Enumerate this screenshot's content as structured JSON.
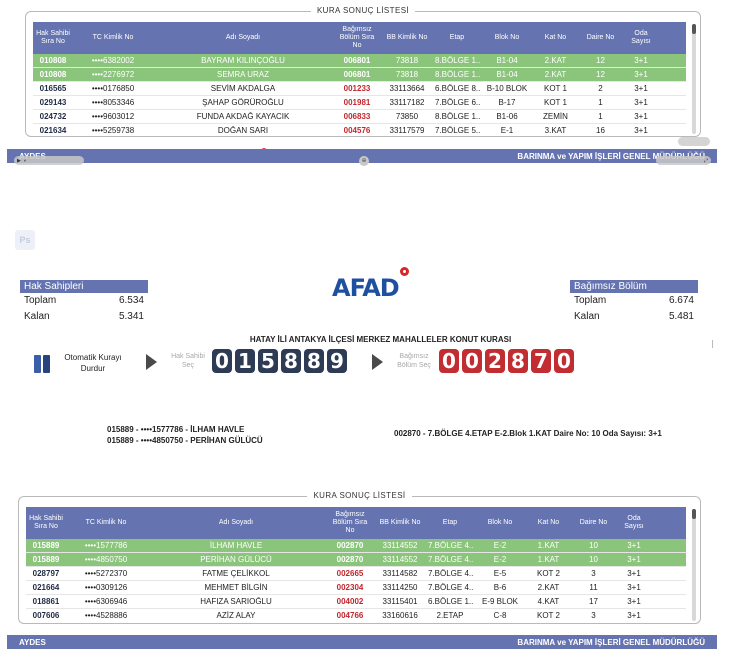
{
  "top_panel": {
    "legend": "KURA SONUÇ LİSTESİ",
    "headers": [
      "Hak Sahibi Sıra No",
      "TC Kimlik No",
      "Adı Soyadı",
      "Bağımsız Bölüm Sıra No",
      "BB Kimlik No",
      "Etap",
      "Blok No",
      "Kat No",
      "Daire No",
      "Oda Sayısı"
    ],
    "rows": [
      {
        "sira": "010808",
        "tc": "••••6382002",
        "ad": "BAYRAM KILINÇOĞLU",
        "bolum": "006801",
        "bb": "73818",
        "etap": "8.BÖLGE 1...",
        "blok": "B1-04",
        "kat": "2.KAT",
        "daire": "12",
        "oda": "3+1",
        "hl": true
      },
      {
        "sira": "010808",
        "tc": "••••2276972",
        "ad": "SEMRA URAZ",
        "bolum": "006801",
        "bb": "73818",
        "etap": "8.BÖLGE 1...",
        "blok": "B1-04",
        "kat": "2.KAT",
        "daire": "12",
        "oda": "3+1",
        "hl": true
      },
      {
        "sira": "016565",
        "tc": "••••0176850",
        "ad": "SEVİM AKDALGA",
        "bolum": "001233",
        "bb": "33113664",
        "etap": "6.BÖLGE 8...",
        "blok": "B-10 BLOK",
        "kat": "KOT 1",
        "daire": "2",
        "oda": "3+1",
        "hl": false
      },
      {
        "sira": "029143",
        "tc": "••••8053346",
        "ad": "ŞAHAP GÖRÜROĞLU",
        "bolum": "001981",
        "bb": "33117182",
        "etap": "7.BÖLGE 6...",
        "blok": "B-17",
        "kat": "KOT 1",
        "daire": "1",
        "oda": "3+1",
        "hl": false
      },
      {
        "sira": "024732",
        "tc": "••••9603012",
        "ad": "FUNDA AKDAĞ KAYACIK",
        "bolum": "006833",
        "bb": "73850",
        "etap": "8.BÖLGE 1...",
        "blok": "B1-06",
        "kat": "ZEMİN",
        "daire": "1",
        "oda": "3+1",
        "hl": false
      },
      {
        "sira": "021634",
        "tc": "••••5259738",
        "ad": "DOĞAN SARI",
        "bolum": "004576",
        "bb": "33117579",
        "etap": "7.BÖLGE 5...",
        "blok": "E-1",
        "kat": "3.KAT",
        "daire": "16",
        "oda": "3+1",
        "hl": false
      }
    ]
  },
  "footer": {
    "left": "AYDES",
    "right": "BARINMA ve YAPIM İŞLERİ GENEL MÜDÜRLÜĞÜ"
  },
  "ps_badge": "Ps",
  "hak_sahipleri": {
    "title": "Hak Sahipleri",
    "toplam_label": "Toplam",
    "toplam": "6.534",
    "kalan_label": "Kalan",
    "kalan": "5.341"
  },
  "bagimsiz_bolum": {
    "title": "Bağımsız Bölüm",
    "toplam_label": "Toplam",
    "toplam": "6.674",
    "kalan_label": "Kalan",
    "kalan": "5.481"
  },
  "logo_text": "AFAD",
  "lottery_title": "HATAY İLİ ANTAKYA İLÇESİ MERKEZ MAHALLELER KONUT KURASI",
  "controls": {
    "auto_label_line1": "Otomatik Kurayı",
    "auto_label_line2": "Durdur",
    "hak_sahibi_sec_line1": "Hak Sahibi",
    "hak_sahibi_sec_line2": "Seç",
    "bagimsiz_sec_line1": "Bağımsız",
    "bagimsiz_sec_line2": "Bölüm Seç",
    "hak_digits": [
      "0",
      "1",
      "5",
      "8",
      "8",
      "9"
    ],
    "bolum_digits": [
      "0",
      "0",
      "2",
      "8",
      "7",
      "0"
    ]
  },
  "winners": [
    "015889 - ••••1577786 - İLHAM HAVLE",
    "015889 - ••••4850750 - PERİHAN GÜLÜCÜ"
  ],
  "unit_line": "002870 - 7.BÖLGE 4.ETAP E-2.Blok 1.KAT Daire No: 10 Oda Sayısı: 3+1",
  "bottom_panel": {
    "legend": "KURA SONUÇ LİSTESİ",
    "headers": [
      "Hak Sahibi Sıra No",
      "TC Kimlik No",
      "Adı Soyadı",
      "Bağımsız Bölüm Sıra No",
      "BB Kimlik No",
      "Etap",
      "Blok No",
      "Kat No",
      "Daire No",
      "Oda Sayısı"
    ],
    "rows": [
      {
        "sira": "015889",
        "tc": "••••1577786",
        "ad": "İLHAM HAVLE",
        "bolum": "002870",
        "bb": "33114552",
        "etap": "7.BÖLGE 4...",
        "blok": "E-2",
        "kat": "1.KAT",
        "daire": "10",
        "oda": "3+1",
        "hl": true
      },
      {
        "sira": "015889",
        "tc": "••••4850750",
        "ad": "PERİHAN GÜLÜCÜ",
        "bolum": "002870",
        "bb": "33114552",
        "etap": "7.BÖLGE 4...",
        "blok": "E-2",
        "kat": "1.KAT",
        "daire": "10",
        "oda": "3+1",
        "hl": true
      },
      {
        "sira": "028797",
        "tc": "••••5272370",
        "ad": "FATME ÇELİKKOL",
        "bolum": "002665",
        "bb": "33114582",
        "etap": "7.BÖLGE 4...",
        "blok": "E-5",
        "kat": "KOT 2",
        "daire": "3",
        "oda": "3+1",
        "hl": false
      },
      {
        "sira": "021664",
        "tc": "••••0309126",
        "ad": "MEHMET BİLGİN",
        "bolum": "002304",
        "bb": "33114250",
        "etap": "7.BÖLGE 4...",
        "blok": "B-6",
        "kat": "2.KAT",
        "daire": "11",
        "oda": "3+1",
        "hl": false
      },
      {
        "sira": "018861",
        "tc": "••••6306946",
        "ad": "HAFIZA SARIOĞLU",
        "bolum": "004002",
        "bb": "33115401",
        "etap": "6.BÖLGE 1...",
        "blok": "E-9 BLOK",
        "kat": "4.KAT",
        "daire": "17",
        "oda": "3+1",
        "hl": false
      },
      {
        "sira": "007606",
        "tc": "••••4528886",
        "ad": "AZİZ ALAY",
        "bolum": "004766",
        "bb": "33160616",
        "etap": "2.ETAP",
        "blok": "C-8",
        "kat": "KOT 2",
        "daire": "3",
        "oda": "3+1",
        "hl": false
      }
    ]
  }
}
